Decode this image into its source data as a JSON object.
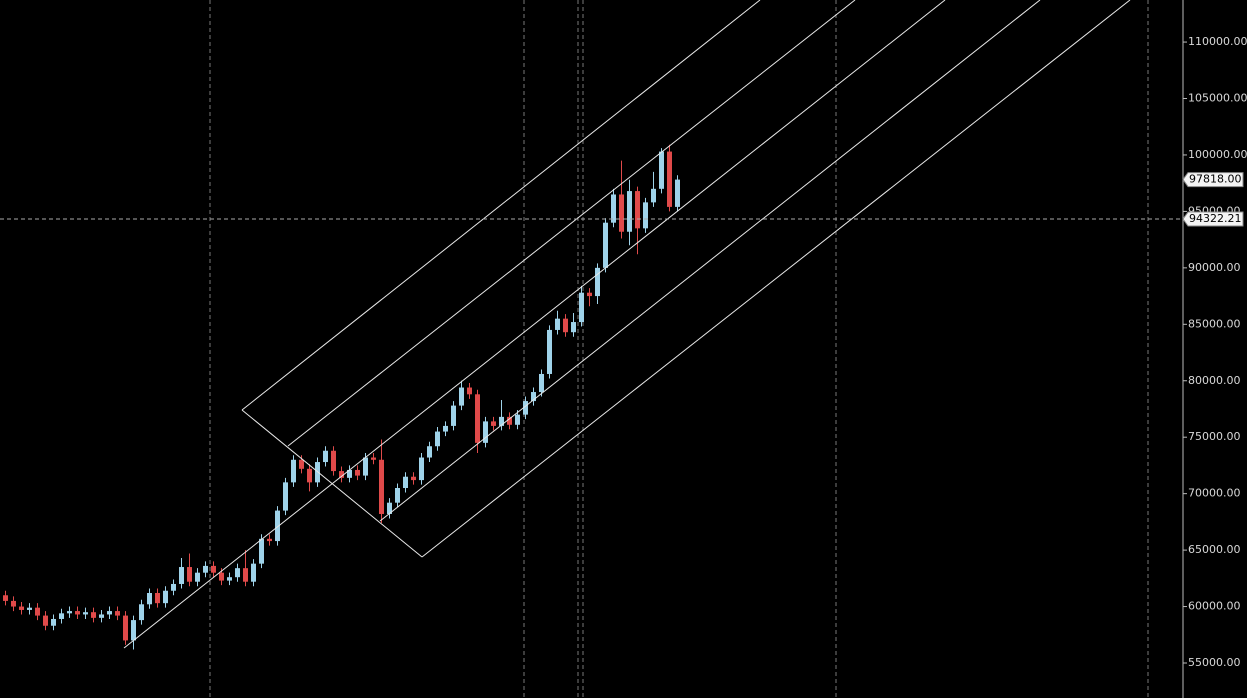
{
  "chart_data": {
    "type": "candlestick",
    "up_color": "#9fd3ea",
    "down_color": "#e04a4a",
    "open": [
      61000,
      60500,
      60000,
      59700,
      59900,
      59200,
      58300,
      58900,
      59400,
      59600,
      59300,
      59500,
      59000,
      59300,
      59600,
      59200,
      57000,
      58800,
      60200,
      61200,
      60300,
      61400,
      62000,
      63500,
      62200,
      63000,
      63600,
      63000,
      62300,
      62600,
      63400,
      62200,
      63800,
      66000,
      65800,
      68500,
      71000,
      73000,
      72200,
      71000,
      72800,
      73800,
      72000,
      71400,
      72100,
      71600,
      73200,
      73000,
      68200,
      69200,
      70500,
      71500,
      71200,
      73200,
      74200,
      75500,
      76000,
      77800,
      79400,
      78800,
      74500,
      76400,
      76000,
      76800,
      76100,
      77000,
      78200,
      79000,
      80600,
      84500,
      85500,
      84300,
      85200,
      87800,
      87500,
      90000,
      94000,
      96500,
      93200,
      96800,
      93500,
      95800,
      97000,
      100300,
      95400
    ],
    "high": [
      61400,
      60900,
      60400,
      60300,
      60300,
      59600,
      59300,
      59800,
      60000,
      60000,
      59900,
      59900,
      59700,
      60000,
      60000,
      59600,
      59200,
      60600,
      61600,
      61600,
      61800,
      62400,
      64300,
      64700,
      63400,
      64000,
      64000,
      63400,
      63000,
      63800,
      65000,
      64200,
      66400,
      66400,
      68900,
      71400,
      73400,
      73400,
      72600,
      73200,
      74200,
      74200,
      72400,
      72500,
      72500,
      73600,
      73600,
      74800,
      69600,
      70900,
      71900,
      71900,
      73600,
      74600,
      75900,
      76400,
      78200,
      80000,
      79800,
      79200,
      76800,
      76800,
      78300,
      77200,
      77400,
      78600,
      79400,
      81000,
      84900,
      86200,
      85900,
      86000,
      88400,
      88200,
      90400,
      94400,
      97000,
      99500,
      97800,
      97200,
      96200,
      98500,
      100600,
      100900,
      98200
    ],
    "low": [
      60100,
      59600,
      59300,
      59300,
      58800,
      57900,
      57900,
      58500,
      59000,
      58900,
      58900,
      58600,
      58600,
      58900,
      58800,
      56600,
      56200,
      58400,
      59800,
      59900,
      59900,
      61000,
      61600,
      61800,
      61800,
      62600,
      62600,
      61900,
      61900,
      62200,
      61800,
      61800,
      63400,
      65400,
      65400,
      68100,
      70600,
      71800,
      70200,
      70600,
      72400,
      71600,
      71000,
      71000,
      71200,
      71200,
      72600,
      67400,
      67800,
      68800,
      70100,
      70800,
      70800,
      72800,
      73800,
      75100,
      75600,
      77400,
      78400,
      73600,
      74100,
      75600,
      75600,
      75700,
      75700,
      76600,
      77800,
      78600,
      80200,
      84100,
      83900,
      83900,
      84800,
      86600,
      86800,
      89600,
      93600,
      92600,
      92000,
      91200,
      93100,
      95400,
      96600,
      95000,
      95000
    ],
    "close": [
      60500,
      60000,
      59700,
      59900,
      59200,
      58300,
      58900,
      59400,
      59600,
      59300,
      59500,
      59000,
      59300,
      59600,
      59200,
      57000,
      58800,
      60200,
      61200,
      60300,
      61400,
      62000,
      63500,
      62200,
      63000,
      63600,
      63000,
      62300,
      62600,
      63400,
      62200,
      63800,
      66000,
      65800,
      68500,
      71000,
      73000,
      72200,
      71000,
      72800,
      73800,
      72000,
      71400,
      72100,
      71600,
      73200,
      73000,
      68200,
      69200,
      70500,
      71500,
      71200,
      73200,
      74200,
      75500,
      76000,
      77800,
      79400,
      78800,
      74500,
      76400,
      76000,
      76800,
      76100,
      77000,
      78200,
      79000,
      80600,
      84500,
      85500,
      84300,
      85200,
      87800,
      87500,
      90000,
      94000,
      96500,
      93200,
      96800,
      93500,
      95800,
      97000,
      100300,
      95400,
      97818
    ],
    "ylim": [
      51900,
      113725
    ],
    "yticks": [
      {
        "value": 55000,
        "label": "55000.00"
      },
      {
        "value": 60000,
        "label": "60000.00"
      },
      {
        "value": 65000,
        "label": "65000.00"
      },
      {
        "value": 70000,
        "label": "70000.00"
      },
      {
        "value": 75000,
        "label": "75000.00"
      },
      {
        "value": 80000,
        "label": "80000.00"
      },
      {
        "value": 85000,
        "label": "85000.00"
      },
      {
        "value": 90000,
        "label": "90000.00"
      },
      {
        "value": 95000,
        "label": "95000.00"
      },
      {
        "value": 100000,
        "label": "100000.00"
      },
      {
        "value": 105000,
        "label": "105000.00"
      },
      {
        "value": 110000,
        "label": "110000.00"
      }
    ],
    "last_price": {
      "value": 97818.0,
      "label": "97818.00"
    },
    "crosshair_price": {
      "value": 94322.21,
      "label": "94322.21"
    }
  }
}
